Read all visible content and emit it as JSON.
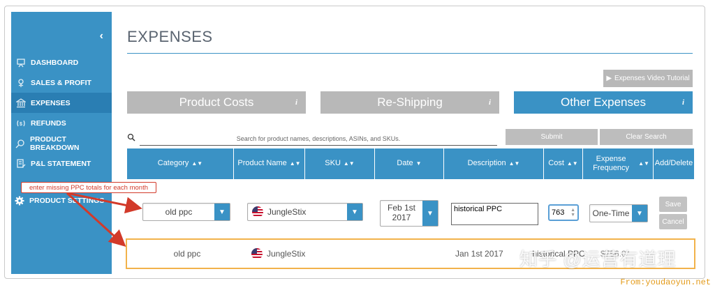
{
  "sidebar": {
    "collapse_icon": "chevron-left-icon",
    "items": [
      {
        "label": "DASHBOARD",
        "icon": "presentation-icon"
      },
      {
        "label": "SALES & PROFIT",
        "icon": "dollar-plant-icon"
      },
      {
        "label": "EXPENSES",
        "icon": "bank-icon",
        "active": true
      },
      {
        "label": "REFUNDS",
        "icon": "refund-icon"
      },
      {
        "label": "PRODUCT BREAKDOWN",
        "icon": "magnifier-icon"
      },
      {
        "label": "P&L STATEMENT",
        "icon": "document-edit-icon"
      },
      {
        "label": "PRODUCT SETTINGS",
        "icon": "gear-icon"
      }
    ]
  },
  "page": {
    "title": "EXPENSES",
    "video_button": "Expenses Video Tutorial",
    "tabs": [
      {
        "label": "Product Costs",
        "info": "i"
      },
      {
        "label": "Re-Shipping",
        "info": "i"
      },
      {
        "label": "Other Expenses",
        "info": "i",
        "active": true
      }
    ],
    "search_placeholder": "Search for product names, descriptions, ASINs, and SKUs.",
    "submit": "Submit",
    "clear": "Clear Search"
  },
  "table": {
    "headers": [
      "Category",
      "Product Name",
      "SKU",
      "Date",
      "Description",
      "Cost",
      "Expense Frequency",
      "Add/Delete"
    ],
    "edit_row": {
      "category": "old ppc",
      "product": "JungleStix",
      "date_line1": "Feb 1st",
      "date_line2": "2017",
      "description": "historical PPC",
      "cost": "763",
      "frequency": "One-Time",
      "save": "Save",
      "cancel": "Cancel"
    },
    "data_row": {
      "category": "old ppc",
      "product": "JungleStix",
      "date": "Jan 1st 2017",
      "description": "historical PPC",
      "cost": "$756.0*"
    }
  },
  "annotation": {
    "callout": "enter missing PPC totals for each month",
    "color": "#d23a2a"
  },
  "overlay": {
    "watermark": "知乎 @运营有道理",
    "credit": "From:youdaoyun.net"
  },
  "colors": {
    "accent": "#3a92c5",
    "highlight": "#f2b24a"
  }
}
